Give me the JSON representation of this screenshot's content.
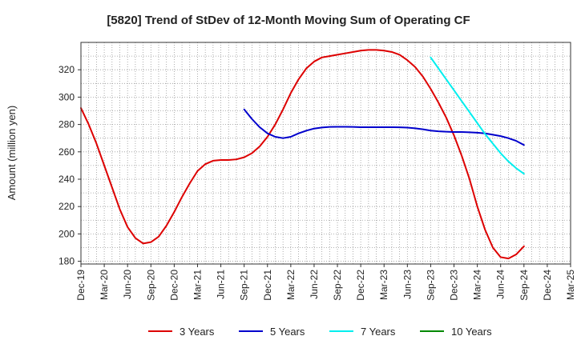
{
  "chart_data": {
    "type": "line",
    "title": "[5820]  Trend of StDev of 12-Month Moving Sum of Operating CF",
    "xlabel": "",
    "ylabel": "Amount (million yen)",
    "ylim": [
      178,
      340
    ],
    "y_ticks": [
      180,
      200,
      220,
      240,
      260,
      280,
      300,
      320
    ],
    "x_tick_labels": [
      "Dec-19",
      "Mar-20",
      "Jun-20",
      "Sep-20",
      "Dec-20",
      "Mar-21",
      "Jun-21",
      "Sep-21",
      "Dec-21",
      "Mar-22",
      "Jun-22",
      "Sep-22",
      "Dec-22",
      "Mar-23",
      "Jun-23",
      "Sep-23",
      "Dec-23",
      "Mar-24",
      "Jun-24",
      "Sep-24",
      "Dec-24",
      "Mar-25"
    ],
    "grid": true,
    "legend_position": "bottom",
    "series": [
      {
        "name": "3 Years",
        "color": "#dd0000",
        "points": [
          [
            "2019-12",
            292
          ],
          [
            "2020-01",
            280
          ],
          [
            "2020-02",
            266
          ],
          [
            "2020-03",
            250
          ],
          [
            "2020-04",
            234
          ],
          [
            "2020-05",
            218
          ],
          [
            "2020-06",
            205
          ],
          [
            "2020-07",
            197
          ],
          [
            "2020-08",
            193
          ],
          [
            "2020-09",
            194
          ],
          [
            "2020-10",
            198
          ],
          [
            "2020-11",
            206
          ],
          [
            "2020-12",
            216
          ],
          [
            "2021-01",
            227
          ],
          [
            "2021-02",
            237
          ],
          [
            "2021-03",
            246
          ],
          [
            "2021-04",
            251
          ],
          [
            "2021-05",
            253.5
          ],
          [
            "2021-06",
            254
          ],
          [
            "2021-07",
            254
          ],
          [
            "2021-08",
            254.5
          ],
          [
            "2021-09",
            256
          ],
          [
            "2021-10",
            259
          ],
          [
            "2021-11",
            264
          ],
          [
            "2021-12",
            271
          ],
          [
            "2022-01",
            280
          ],
          [
            "2022-02",
            291
          ],
          [
            "2022-03",
            303
          ],
          [
            "2022-04",
            313
          ],
          [
            "2022-05",
            321
          ],
          [
            "2022-06",
            326
          ],
          [
            "2022-07",
            329
          ],
          [
            "2022-08",
            330
          ],
          [
            "2022-09",
            331
          ],
          [
            "2022-10",
            332
          ],
          [
            "2022-11",
            333
          ],
          [
            "2022-12",
            334
          ],
          [
            "2023-01",
            334.5
          ],
          [
            "2023-02",
            334.5
          ],
          [
            "2023-03",
            334
          ],
          [
            "2023-04",
            333
          ],
          [
            "2023-05",
            331
          ],
          [
            "2023-06",
            327
          ],
          [
            "2023-07",
            322
          ],
          [
            "2023-08",
            315
          ],
          [
            "2023-09",
            306
          ],
          [
            "2023-10",
            296
          ],
          [
            "2023-11",
            285
          ],
          [
            "2023-12",
            272
          ],
          [
            "2024-01",
            257
          ],
          [
            "2024-02",
            240
          ],
          [
            "2024-03",
            220
          ],
          [
            "2024-04",
            203
          ],
          [
            "2024-05",
            190
          ],
          [
            "2024-06",
            183
          ],
          [
            "2024-07",
            182
          ],
          [
            "2024-08",
            185
          ],
          [
            "2024-09",
            191
          ]
        ]
      },
      {
        "name": "5 Years",
        "color": "#0000cc",
        "points": [
          [
            "2021-09",
            291
          ],
          [
            "2021-10",
            284
          ],
          [
            "2021-11",
            278
          ],
          [
            "2021-12",
            273.5
          ],
          [
            "2022-01",
            271
          ],
          [
            "2022-02",
            270
          ],
          [
            "2022-03",
            271
          ],
          [
            "2022-04",
            273.5
          ],
          [
            "2022-05",
            275.5
          ],
          [
            "2022-06",
            277
          ],
          [
            "2022-07",
            277.8
          ],
          [
            "2022-08",
            278.2
          ],
          [
            "2022-09",
            278.3
          ],
          [
            "2022-10",
            278.3
          ],
          [
            "2022-11",
            278.2
          ],
          [
            "2022-12",
            278
          ],
          [
            "2023-01",
            278
          ],
          [
            "2023-02",
            278
          ],
          [
            "2023-03",
            278
          ],
          [
            "2023-04",
            278
          ],
          [
            "2023-05",
            277.9
          ],
          [
            "2023-06",
            277.7
          ],
          [
            "2023-07",
            277.2
          ],
          [
            "2023-08",
            276.5
          ],
          [
            "2023-09",
            275.5
          ],
          [
            "2023-10",
            275
          ],
          [
            "2023-11",
            274.7
          ],
          [
            "2023-12",
            274.5
          ],
          [
            "2024-01",
            274.5
          ],
          [
            "2024-02",
            274.3
          ],
          [
            "2024-03",
            274
          ],
          [
            "2024-04",
            273.5
          ],
          [
            "2024-05",
            272.5
          ],
          [
            "2024-06",
            271.5
          ],
          [
            "2024-07",
            270
          ],
          [
            "2024-08",
            268
          ],
          [
            "2024-09",
            265
          ]
        ]
      },
      {
        "name": "7 Years",
        "color": "#00eeee",
        "points": [
          [
            "2023-09",
            329
          ],
          [
            "2023-10",
            321
          ],
          [
            "2023-11",
            313
          ],
          [
            "2023-12",
            305
          ],
          [
            "2024-01",
            297
          ],
          [
            "2024-02",
            289
          ],
          [
            "2024-03",
            281
          ],
          [
            "2024-04",
            273
          ],
          [
            "2024-05",
            266
          ],
          [
            "2024-06",
            259
          ],
          [
            "2024-07",
            253
          ],
          [
            "2024-08",
            248
          ],
          [
            "2024-09",
            244
          ]
        ]
      },
      {
        "name": "10 Years",
        "color": "#008800",
        "points": []
      }
    ]
  }
}
